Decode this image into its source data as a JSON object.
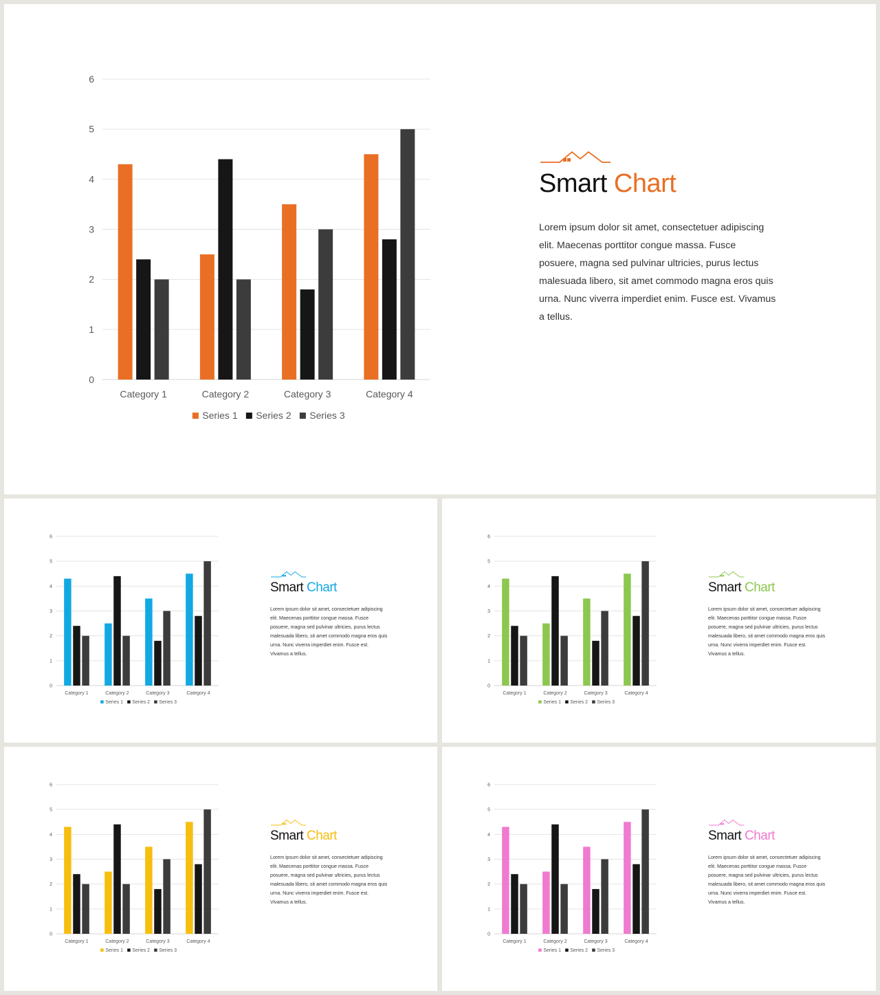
{
  "brand": {
    "title_word1": "Smart",
    "title_word2": "Chart",
    "description": "Lorem ipsum dolor sit amet, consectetuer adipiscing elit. Maecenas porttitor congue massa. Fusce posuere, magna sed pulvinar ultricies, purus lectus malesuada libero, sit amet commodo magna eros quis urna. Nunc viverra imperdiet enim. Fusce est. Vivamus a tellus."
  },
  "themes": {
    "main": "#e96f24",
    "blue": "#12a9e3",
    "green": "#8cc74f",
    "yellow": "#f7be0f",
    "pink": "#f07ad0"
  },
  "series_colors": {
    "series2": "#161616",
    "series3": "#3c3c3c"
  },
  "chart_data": {
    "type": "bar",
    "categories": [
      "Category 1",
      "Category 2",
      "Category 3",
      "Category 4"
    ],
    "series": [
      {
        "name": "Series 1",
        "values": [
          4.3,
          2.5,
          3.5,
          4.5
        ]
      },
      {
        "name": "Series 2",
        "values": [
          2.4,
          4.4,
          1.8,
          2.8
        ]
      },
      {
        "name": "Series 3",
        "values": [
          2,
          2,
          3,
          5
        ]
      }
    ],
    "ylim": [
      0,
      6
    ],
    "yticks": [
      0,
      1,
      2,
      3,
      4,
      5,
      6
    ],
    "grid": true,
    "legend": "bottom"
  }
}
